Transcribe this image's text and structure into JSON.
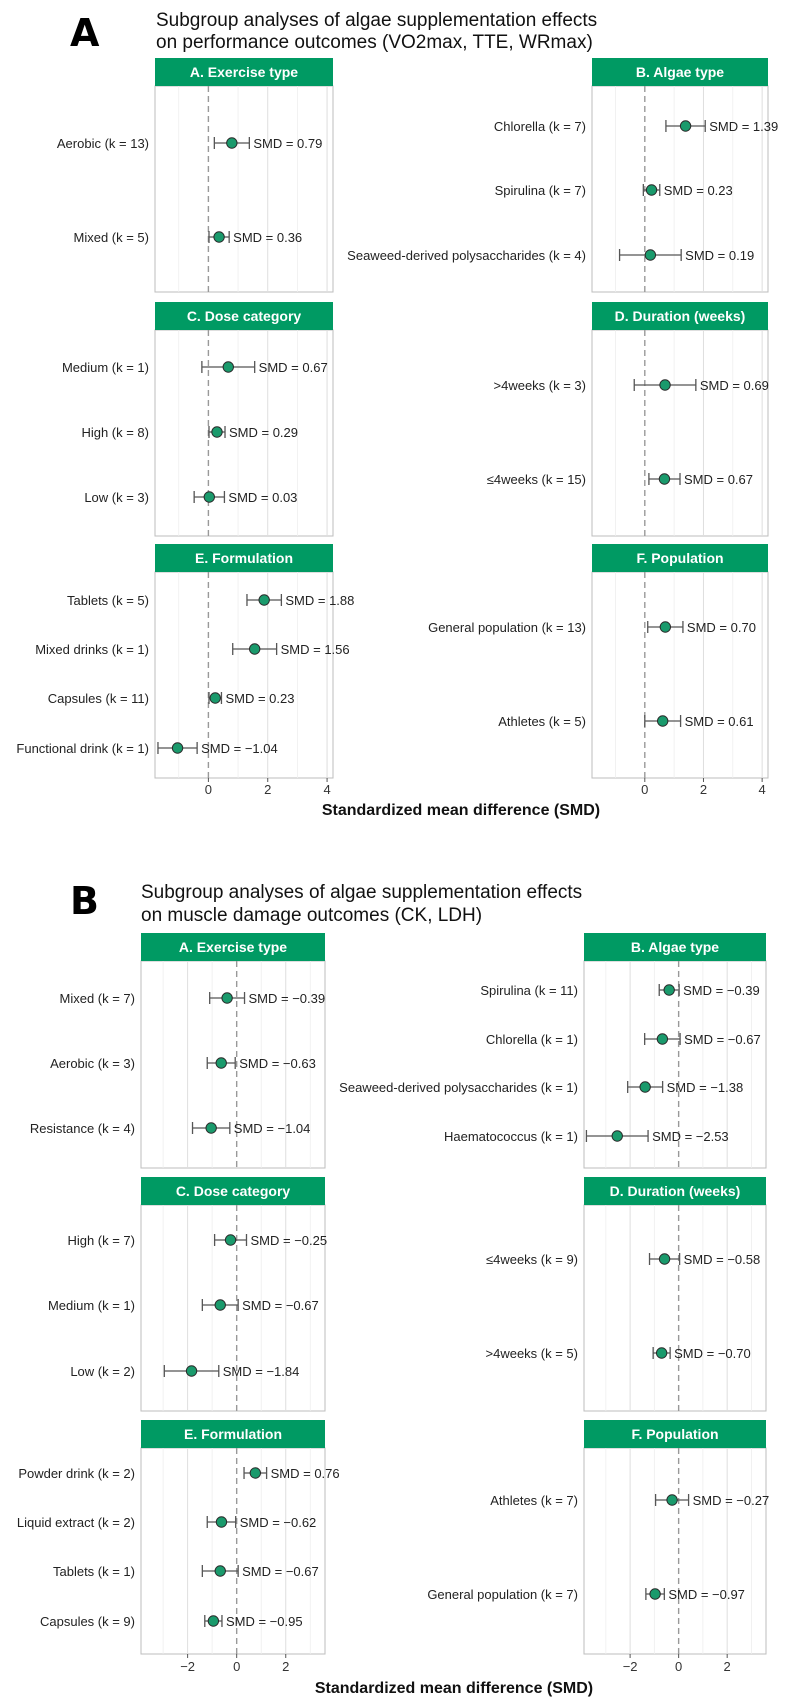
{
  "figures": [
    {
      "letter": "A",
      "title_lines": [
        "Subgroup analyses of algae supplementation effects",
        "on performance outcomes (VO2max, TTE, WRmax)"
      ],
      "xlabel": "Standardized mean difference (SMD)",
      "x_ticks": [
        "0",
        "2",
        "4"
      ],
      "panels": [
        {
          "title": "A. Exercise type",
          "items": [
            {
              "label": "Aerobic (k = 13)",
              "smd": 0.79,
              "ci": [
                0.2,
                1.38
              ],
              "text": "SMD = 0.79"
            },
            {
              "label": "Mixed (k = 5)",
              "smd": 0.36,
              "ci": [
                0.02,
                0.7
              ],
              "text": "SMD = 0.36"
            }
          ]
        },
        {
          "title": "B. Algae type",
          "items": [
            {
              "label": "Chlorella (k = 7)",
              "smd": 1.39,
              "ci": [
                0.72,
                2.06
              ],
              "text": "SMD = 1.39"
            },
            {
              "label": "Spirulina (k = 7)",
              "smd": 0.23,
              "ci": [
                -0.05,
                0.51
              ],
              "text": "SMD = 0.23"
            },
            {
              "label": "Seaweed-derived polysaccharides (k = 4)",
              "smd": 0.19,
              "ci": [
                -0.86,
                1.24
              ],
              "text": "SMD = 0.19"
            }
          ]
        },
        {
          "title": "C. Dose category",
          "items": [
            {
              "label": "Medium (k = 1)",
              "smd": 0.67,
              "ci": [
                -0.22,
                1.56
              ],
              "text": "SMD = 0.67"
            },
            {
              "label": "High (k = 8)",
              "smd": 0.29,
              "ci": [
                0.02,
                0.56
              ],
              "text": "SMD = 0.29"
            },
            {
              "label": "Low (k = 3)",
              "smd": 0.03,
              "ci": [
                -0.48,
                0.54
              ],
              "text": "SMD = 0.03"
            }
          ]
        },
        {
          "title": "D. Duration (weeks)",
          "items": [
            {
              "label": ">4weeks (k = 3)",
              "smd": 0.69,
              "ci": [
                -0.36,
                1.74
              ],
              "text": "SMD = 0.69"
            },
            {
              "label": "≤4weeks (k = 15)",
              "smd": 0.67,
              "ci": [
                0.14,
                1.2
              ],
              "text": "SMD = 0.67"
            }
          ]
        },
        {
          "title": "E. Formulation",
          "items": [
            {
              "label": "Tablets (k = 5)",
              "smd": 1.88,
              "ci": [
                1.3,
                2.46
              ],
              "text": "SMD = 1.88"
            },
            {
              "label": "Mixed drinks (k = 1)",
              "smd": 1.56,
              "ci": [
                0.82,
                2.3
              ],
              "text": "SMD = 1.56"
            },
            {
              "label": "Capsules (k = 11)",
              "smd": 0.23,
              "ci": [
                0.02,
                0.44
              ],
              "text": "SMD = 0.23"
            },
            {
              "label": "Functional drink (k = 1)",
              "smd": -1.04,
              "ci": [
                -1.7,
                -0.38
              ],
              "text": "SMD = −1.04"
            }
          ]
        },
        {
          "title": "F. Population",
          "items": [
            {
              "label": "General population (k = 13)",
              "smd": 0.7,
              "ci": [
                0.1,
                1.3
              ],
              "text": "SMD = 0.70"
            },
            {
              "label": "Athletes (k = 5)",
              "smd": 0.61,
              "ci": [
                0.0,
                1.22
              ],
              "text": "SMD = 0.61"
            }
          ]
        }
      ]
    },
    {
      "letter": "B",
      "title_lines": [
        "Subgroup analyses of algae supplementation effects",
        "on muscle damage outcomes (CK, LDH)"
      ],
      "xlabel": "Standardized mean difference (SMD)",
      "x_ticks": [
        "−2",
        "0",
        "2"
      ],
      "panels": [
        {
          "title": "A. Exercise type",
          "items": [
            {
              "label": "Mixed (k = 7)",
              "smd": -0.39,
              "ci": [
                -1.1,
                0.32
              ],
              "text": "SMD = −0.39"
            },
            {
              "label": "Aerobic (k = 3)",
              "smd": -0.63,
              "ci": [
                -1.2,
                -0.06
              ],
              "text": "SMD = −0.63"
            },
            {
              "label": "Resistance (k = 4)",
              "smd": -1.04,
              "ci": [
                -1.8,
                -0.28
              ],
              "text": "SMD = −1.04"
            }
          ]
        },
        {
          "title": "B. Algae type",
          "items": [
            {
              "label": "Spirulina (k = 11)",
              "smd": -0.39,
              "ci": [
                -0.8,
                0.02
              ],
              "text": "SMD = −0.39"
            },
            {
              "label": "Chlorella (k = 1)",
              "smd": -0.67,
              "ci": [
                -1.4,
                0.06
              ],
              "text": "SMD = −0.67"
            },
            {
              "label": "Seaweed-derived polysaccharides (k = 1)",
              "smd": -1.38,
              "ci": [
                -2.1,
                -0.66
              ],
              "text": "SMD = −1.38"
            },
            {
              "label": "Haematococcus (k = 1)",
              "smd": -2.53,
              "ci": [
                -3.8,
                -1.26
              ],
              "text": "SMD = −2.53"
            }
          ]
        },
        {
          "title": "C. Dose category",
          "items": [
            {
              "label": "High (k = 7)",
              "smd": -0.25,
              "ci": [
                -0.9,
                0.4
              ],
              "text": "SMD = −0.25"
            },
            {
              "label": "Medium (k = 1)",
              "smd": -0.67,
              "ci": [
                -1.4,
                0.06
              ],
              "text": "SMD = −0.67"
            },
            {
              "label": "Low (k = 2)",
              "smd": -1.84,
              "ci": [
                -2.95,
                -0.73
              ],
              "text": "SMD = −1.84"
            }
          ]
        },
        {
          "title": "D. Duration (weeks)",
          "items": [
            {
              "label": "≤4weeks (k = 9)",
              "smd": -0.58,
              "ci": [
                -1.2,
                0.04
              ],
              "text": "SMD = −0.58"
            },
            {
              "label": ">4weeks (k = 5)",
              "smd": -0.7,
              "ci": [
                -1.05,
                -0.35
              ],
              "text": "SMD = −0.70"
            }
          ]
        },
        {
          "title": "E. Formulation",
          "items": [
            {
              "label": "Powder drink (k = 2)",
              "smd": 0.76,
              "ci": [
                0.3,
                1.22
              ],
              "text": "SMD = 0.76"
            },
            {
              "label": "Liquid extract (k = 2)",
              "smd": -0.62,
              "ci": [
                -1.2,
                -0.04
              ],
              "text": "SMD = −0.62"
            },
            {
              "label": "Tablets (k = 1)",
              "smd": -0.67,
              "ci": [
                -1.4,
                0.06
              ],
              "text": "SMD = −0.67"
            },
            {
              "label": "Capsules (k = 9)",
              "smd": -0.95,
              "ci": [
                -1.3,
                -0.6
              ],
              "text": "SMD = −0.95"
            }
          ]
        },
        {
          "title": "F. Population",
          "items": [
            {
              "label": "Athletes (k = 7)",
              "smd": -0.27,
              "ci": [
                -0.95,
                0.41
              ],
              "text": "SMD = −0.27"
            },
            {
              "label": "General population (k = 7)",
              "smd": -0.97,
              "ci": [
                -1.35,
                -0.59
              ],
              "text": "SMD = −0.97"
            }
          ]
        }
      ]
    }
  ],
  "chart_data": [
    {
      "type": "forest",
      "title": "Subgroup analyses of algae supplementation effects on performance outcomes (VO2max, TTE, WRmax)",
      "xlabel": "Standardized mean difference (SMD)",
      "xlim": [
        -1.8,
        4.2
      ],
      "x_ticks": [
        0,
        2,
        4
      ],
      "reference_line": 0,
      "series": [
        {
          "name": "A. Exercise type",
          "labels": [
            "Aerobic (k = 13)",
            "Mixed (k = 5)"
          ],
          "values": [
            0.79,
            0.36
          ]
        },
        {
          "name": "B. Algae type",
          "labels": [
            "Chlorella (k = 7)",
            "Spirulina (k = 7)",
            "Seaweed-derived polysaccharides (k = 4)"
          ],
          "values": [
            1.39,
            0.23,
            0.19
          ]
        },
        {
          "name": "C. Dose category",
          "labels": [
            "Medium (k = 1)",
            "High (k = 8)",
            "Low (k = 3)"
          ],
          "values": [
            0.67,
            0.29,
            0.03
          ]
        },
        {
          "name": "D. Duration (weeks)",
          "labels": [
            ">4weeks (k = 3)",
            "≤4weeks (k = 15)"
          ],
          "values": [
            0.69,
            0.67
          ]
        },
        {
          "name": "E. Formulation",
          "labels": [
            "Tablets (k = 5)",
            "Mixed drinks (k = 1)",
            "Capsules (k = 11)",
            "Functional drink (k = 1)"
          ],
          "values": [
            1.88,
            1.56,
            0.23,
            -1.04
          ]
        },
        {
          "name": "F. Population",
          "labels": [
            "General population (k = 13)",
            "Athletes (k = 5)"
          ],
          "values": [
            0.7,
            0.61
          ]
        }
      ]
    },
    {
      "type": "forest",
      "title": "Subgroup analyses of algae supplementation effects on muscle damage outcomes (CK, LDH)",
      "xlabel": "Standardized mean difference (SMD)",
      "xlim": [
        -3.9,
        3.6
      ],
      "x_ticks": [
        -2,
        0,
        2
      ],
      "reference_line": 0,
      "series": [
        {
          "name": "A. Exercise type",
          "labels": [
            "Mixed (k = 7)",
            "Aerobic (k = 3)",
            "Resistance (k = 4)"
          ],
          "values": [
            -0.39,
            -0.63,
            -1.04
          ]
        },
        {
          "name": "B. Algae type",
          "labels": [
            "Spirulina (k = 11)",
            "Chlorella (k = 1)",
            "Seaweed-derived polysaccharides (k = 1)",
            "Haematococcus (k = 1)"
          ],
          "values": [
            -0.39,
            -0.67,
            -1.38,
            -2.53
          ]
        },
        {
          "name": "C. Dose category",
          "labels": [
            "High (k = 7)",
            "Medium (k = 1)",
            "Low (k = 2)"
          ],
          "values": [
            -0.25,
            -0.67,
            -1.84
          ]
        },
        {
          "name": "D. Duration (weeks)",
          "labels": [
            "≤4weeks (k = 9)",
            ">4weeks (k = 5)"
          ],
          "values": [
            -0.58,
            -0.7
          ]
        },
        {
          "name": "E. Formulation",
          "labels": [
            "Powder drink (k = 2)",
            "Liquid extract (k = 2)",
            "Tablets (k = 1)",
            "Capsules (k = 9)"
          ],
          "values": [
            0.76,
            -0.62,
            -0.67,
            -0.95
          ]
        },
        {
          "name": "F. Population",
          "labels": [
            "Athletes (k = 7)",
            "General population (k = 7)"
          ],
          "values": [
            -0.27,
            -0.97
          ]
        }
      ]
    }
  ],
  "colors": {
    "strip": "#009a63",
    "point": "#1a9a6c",
    "whisker": "#555555",
    "refline": "#999999",
    "grid": "#e4e4e4"
  }
}
